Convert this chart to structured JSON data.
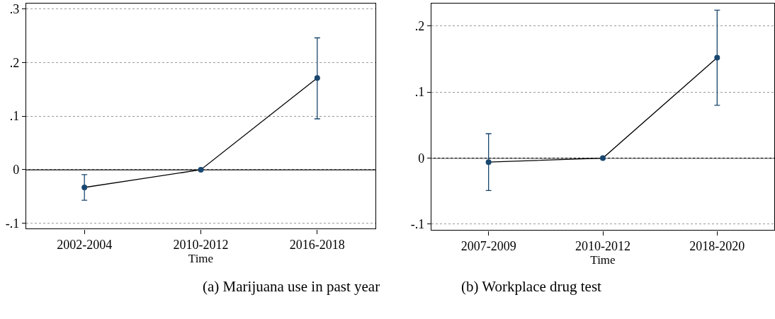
{
  "chart_data": [
    {
      "type": "line",
      "title": "(a) Marijuana use in past year",
      "xlabel": "Time",
      "categories": [
        "2002-2004",
        "2010-2012",
        "2016-2018"
      ],
      "series": [
        {
          "color": "#1a476f",
          "values": [
            -0.033,
            0,
            0.171
          ],
          "errors": [
            [
              -0.057,
              -0.009
            ],
            null,
            [
              0.095,
              0.246
            ]
          ]
        }
      ],
      "ylim": [
        -0.11,
        0.31
      ],
      "yticks": [
        {
          "value": -0.1,
          "label": "-.1"
        },
        0,
        {
          "value": 0.1,
          "label": ".1"
        },
        {
          "value": 0.2,
          "label": ".2"
        },
        {
          "value": 0.3,
          "label": ".3"
        }
      ],
      "ref_lines": [
        {
          "axis": "y",
          "value": 0,
          "color": "#000000"
        }
      ],
      "grid": "y",
      "marker": "circle"
    },
    {
      "type": "line",
      "title": "(b) Workplace drug test",
      "xlabel": "Time",
      "categories": [
        "2007-2009",
        "2010-2012",
        "2018-2020"
      ],
      "series": [
        {
          "color": "#1a476f",
          "values": [
            -0.006,
            0,
            0.152
          ],
          "errors": [
            [
              -0.049,
              0.037
            ],
            null,
            [
              0.08,
              0.224
            ]
          ]
        }
      ],
      "ylim": [
        -0.109,
        0.234
      ],
      "yticks": [
        {
          "value": -0.1,
          "label": "-.1"
        },
        0,
        {
          "value": 0.1,
          "label": ".1"
        },
        {
          "value": 0.2,
          "label": ".2"
        }
      ],
      "ref_lines": [
        {
          "axis": "y",
          "value": 0,
          "color": "#000000"
        }
      ],
      "grid": "y",
      "marker": "circle"
    }
  ]
}
